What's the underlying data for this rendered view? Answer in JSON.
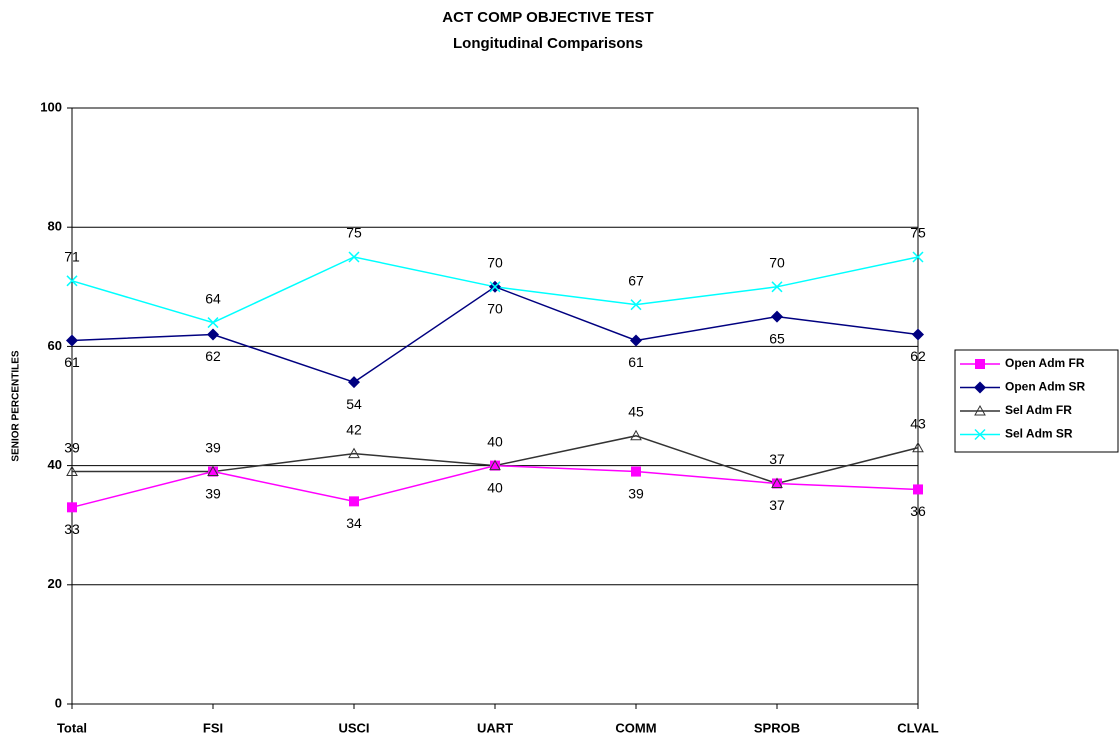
{
  "chart_data": {
    "type": "line",
    "title": "ACT COMP OBJECTIVE TEST",
    "subtitle": "Longitudinal Comparisons",
    "y_label": "SENIOR PERCENTILES",
    "categories": [
      "Total",
      "FSI",
      "USCI",
      "UART",
      "COMM",
      "SPROB",
      "CLVAL"
    ],
    "series": [
      {
        "name": "Open Adm FR",
        "color": "#ff00ff",
        "marker": "square",
        "label_position": "below",
        "values": [
          33,
          39,
          34,
          40,
          39,
          37,
          36
        ]
      },
      {
        "name": "Open Adm SR",
        "color": "#000080",
        "marker": "diamond",
        "label_position": "below",
        "values": [
          61,
          62,
          54,
          70,
          61,
          65,
          62
        ]
      },
      {
        "name": "Sel Adm FR",
        "color": "#333333",
        "marker": "triangle",
        "label_position": "above",
        "values": [
          39,
          39,
          42,
          40,
          45,
          37,
          43
        ]
      },
      {
        "name": "Sel Adm SR",
        "color": "#00ffff",
        "marker": "x",
        "label_position": "above",
        "values": [
          71,
          64,
          75,
          70,
          67,
          70,
          75
        ]
      }
    ],
    "ylim": [
      0,
      100
    ],
    "yticks": [
      0,
      20,
      40,
      60,
      80,
      100
    ],
    "grid": true,
    "legend_position": "right"
  }
}
